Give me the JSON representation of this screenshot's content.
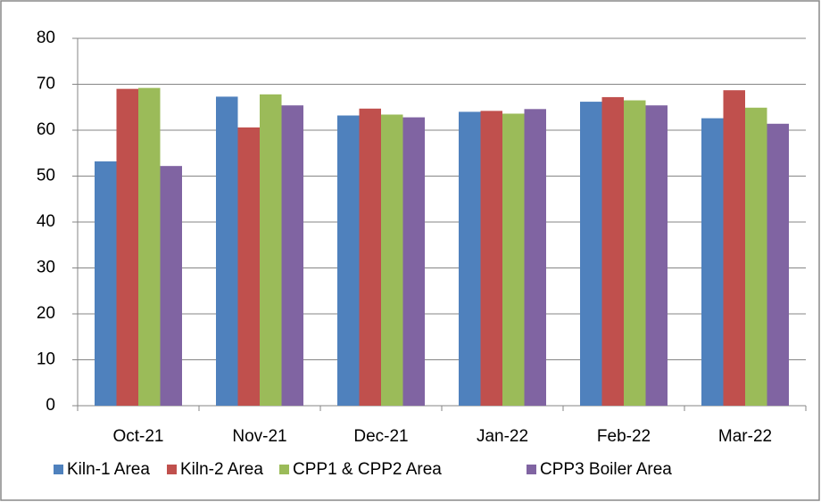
{
  "chart_data": {
    "type": "bar",
    "categories": [
      "Oct-21",
      "Nov-21",
      "Dec-21",
      "Jan-22",
      "Feb-22",
      "Mar-22"
    ],
    "series": [
      {
        "name": "Kiln-1 Area",
        "color": "#4f81bd",
        "values": [
          53.2,
          67.3,
          63.2,
          64.0,
          66.2,
          62.6
        ]
      },
      {
        "name": "Kiln-2 Area",
        "color": "#c0504d",
        "values": [
          69.0,
          60.6,
          64.7,
          64.2,
          67.2,
          68.7
        ]
      },
      {
        "name": "CPP1 & CPP2 Area",
        "color": "#9bbb59",
        "values": [
          69.2,
          67.8,
          63.4,
          63.6,
          66.5,
          64.9
        ]
      },
      {
        "name": "CPP3 Boiler Area",
        "color": "#8064a2",
        "values": [
          52.2,
          65.4,
          62.8,
          64.6,
          65.4,
          61.4
        ]
      }
    ],
    "ylim": [
      0,
      80
    ],
    "yticks": [
      0,
      10,
      20,
      30,
      40,
      50,
      60,
      70,
      80
    ],
    "grid": true,
    "legend": "bottom"
  }
}
